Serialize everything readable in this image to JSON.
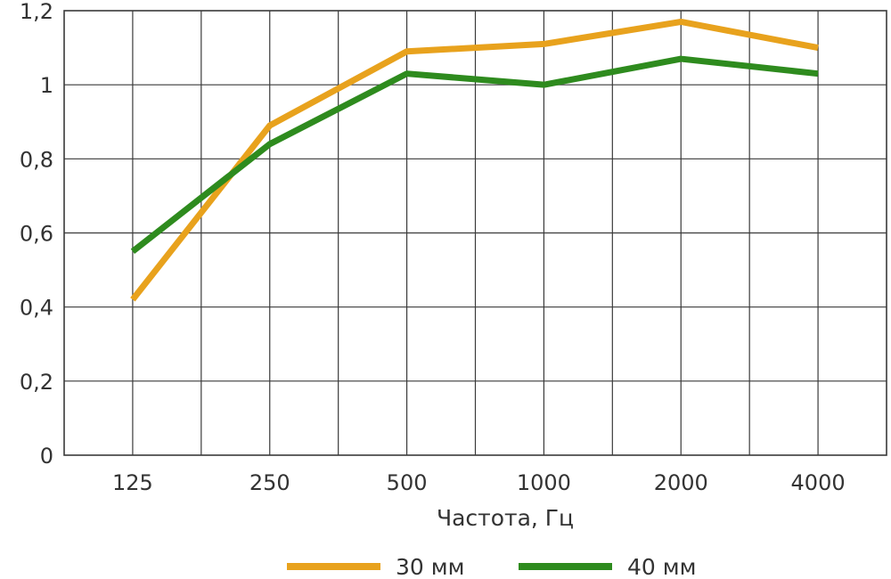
{
  "chart_data": {
    "type": "line",
    "categories": [
      "125",
      "250",
      "500",
      "1000",
      "2000",
      "4000"
    ],
    "series": [
      {
        "name": "30 мм",
        "color": "#E8A21D",
        "values": [
          0.42,
          0.89,
          1.09,
          1.11,
          1.17,
          1.1
        ]
      },
      {
        "name": "40 мм",
        "color": "#2E8B1E",
        "values": [
          0.55,
          0.84,
          1.03,
          1.0,
          1.07,
          1.03
        ]
      }
    ],
    "xlabel": "Частота, Гц",
    "ylabel": "",
    "ylim": [
      0,
      1.2
    ],
    "yticks": [
      "0",
      "0,2",
      "0,4",
      "0,6",
      "0,8",
      "1",
      "1,2"
    ],
    "grid": true,
    "legend_position": "bottom"
  }
}
